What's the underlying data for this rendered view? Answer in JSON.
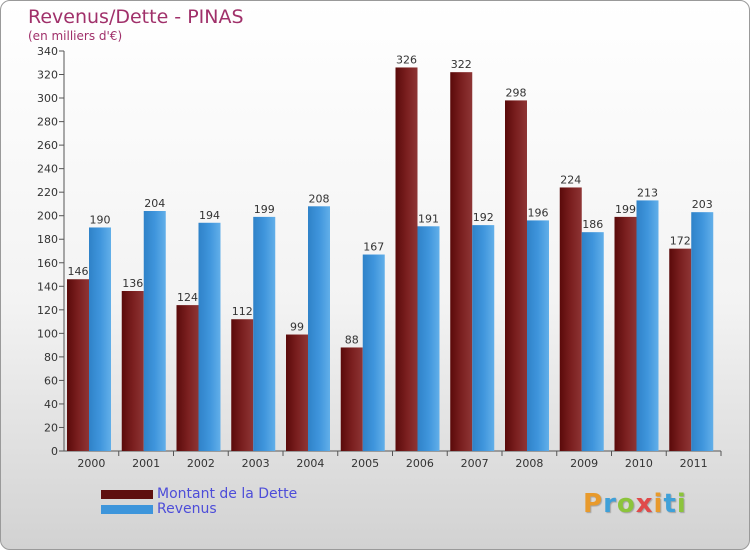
{
  "header": {
    "title": "Revenus/Dette - PINAS",
    "subtitle": "(en milliers d'€)"
  },
  "colors": {
    "dette": "#7a1f1f",
    "revenus": "#3f95dc",
    "title": "#a0306a",
    "legend_text": "#4d4dd9"
  },
  "legend": {
    "items": [
      {
        "label": "Montant de la Dette",
        "color": "#5e0f0f"
      },
      {
        "label": "Revenus",
        "color": "#3d95db"
      }
    ]
  },
  "logo": {
    "letters": [
      {
        "char": "P",
        "color": "#e89a2c"
      },
      {
        "char": "r",
        "color": "#3fa0d8"
      },
      {
        "char": "o",
        "color": "#8cc43c"
      },
      {
        "char": "x",
        "color": "#e04a4a"
      },
      {
        "char": "i",
        "color": "#e89a2c"
      },
      {
        "char": "t",
        "color": "#3fa0d8"
      },
      {
        "char": "i",
        "color": "#8cc43c"
      }
    ]
  },
  "chart_data": {
    "type": "bar",
    "title": "Revenus/Dette - PINAS",
    "subtitle": "(en milliers d'€)",
    "categories": [
      "2000",
      "2001",
      "2002",
      "2003",
      "2004",
      "2005",
      "2006",
      "2007",
      "2008",
      "2009",
      "2010",
      "2011"
    ],
    "series": [
      {
        "name": "Montant de la Dette",
        "values": [
          146,
          136,
          124,
          112,
          99,
          88,
          326,
          322,
          298,
          224,
          199,
          172
        ]
      },
      {
        "name": "Revenus",
        "values": [
          190,
          204,
          194,
          199,
          208,
          167,
          191,
          192,
          196,
          186,
          213,
          203
        ]
      }
    ],
    "ylim": [
      0,
      340
    ],
    "ytick_step": 20,
    "grid": false,
    "legend_position": "bottom-left"
  }
}
